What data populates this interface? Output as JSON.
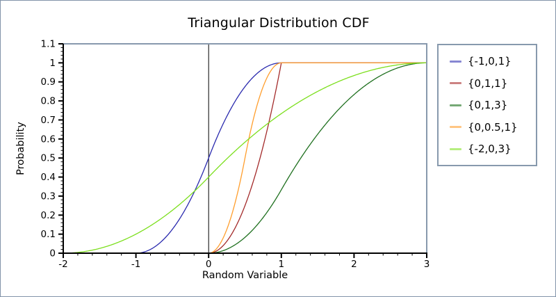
{
  "figure": {
    "border_color": "#8293a9",
    "background": "#ffffff"
  },
  "chart_data": {
    "type": "line",
    "title": "Triangular Distribution CDF",
    "xlabel": "Random Variable",
    "ylabel": "Probability",
    "xlim": [
      -2,
      3
    ],
    "ylim": [
      0,
      1.1
    ],
    "x_ticks": [
      -2,
      -1,
      0,
      1,
      2,
      3
    ],
    "x_tick_labels": [
      "-2",
      "-1",
      "0",
      "1",
      "2",
      "3"
    ],
    "y_ticks": [
      0,
      0.1,
      0.2,
      0.3,
      0.4,
      0.5,
      0.6,
      0.7,
      0.8,
      0.9,
      1,
      1.1
    ],
    "y_tick_labels": [
      "0",
      "0.1",
      "0.2",
      "0.3",
      "0.4",
      "0.5",
      "0.6",
      "0.7",
      "0.8",
      "0.9",
      "1",
      "1.1"
    ],
    "x_minor_tick_step": 0.2,
    "y_minor_tick_step": 0.02,
    "grid": false,
    "legend_position": "right",
    "origin_axis_x": 0,
    "frame_color": "#8799ad",
    "axis_color": "#000000",
    "curve_type": "triangular_cdf",
    "cdf_formula": "F(x)=(x-a)^2/((b-a)(c-a)) for a<=x<=c; F(x)=1-(b-x)^2/((b-a)(b-c)) for c<=x<=b",
    "series": [
      {
        "label": "{-1,0,1}",
        "min": -1,
        "mode": 0,
        "max": 1,
        "color": "#2a2aae",
        "legend_swatch_color": "#8787d2",
        "key_points": [
          [
            -1,
            0
          ],
          [
            -0.5,
            0.125
          ],
          [
            0,
            0.5
          ],
          [
            0.5,
            0.875
          ],
          [
            1,
            1
          ]
        ]
      },
      {
        "label": "{0,1,1}",
        "min": 0,
        "mode": 1,
        "max": 1,
        "color": "#a32a2a",
        "legend_swatch_color": "#cc8383",
        "key_points": [
          [
            0,
            0
          ],
          [
            0.25,
            0.0625
          ],
          [
            0.5,
            0.25
          ],
          [
            0.75,
            0.5625
          ],
          [
            1,
            1
          ]
        ]
      },
      {
        "label": "{0,1,3}",
        "min": 0,
        "mode": 1,
        "max": 3,
        "color": "#1f701f",
        "legend_swatch_color": "#76a976",
        "key_points": [
          [
            0,
            0
          ],
          [
            0.5,
            0.0833
          ],
          [
            1,
            0.3333
          ],
          [
            2,
            0.8333
          ],
          [
            3,
            1
          ]
        ]
      },
      {
        "label": "{0,0.5,1}",
        "min": 0,
        "mode": 0.5,
        "max": 1,
        "color": "#ff9e2d",
        "legend_swatch_color": "#ffc684",
        "key_points": [
          [
            0,
            0
          ],
          [
            0.25,
            0.125
          ],
          [
            0.5,
            0.5
          ],
          [
            0.75,
            0.875
          ],
          [
            1,
            1
          ]
        ]
      },
      {
        "label": "{-2,0,3}",
        "min": -2,
        "mode": 0,
        "max": 3,
        "color": "#7cdf1d",
        "legend_swatch_color": "#b6ee80",
        "key_points": [
          [
            -2,
            0
          ],
          [
            -1,
            0.1
          ],
          [
            0,
            0.4
          ],
          [
            1,
            0.7333
          ],
          [
            2,
            0.9333
          ],
          [
            3,
            1
          ]
        ]
      }
    ]
  }
}
